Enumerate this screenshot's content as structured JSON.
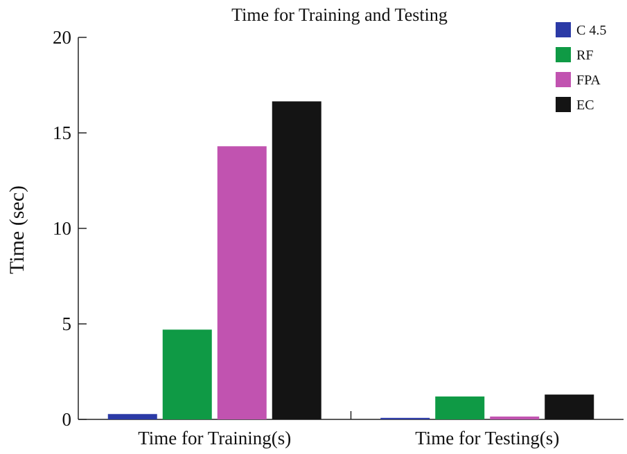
{
  "chart_data": {
    "type": "bar",
    "title": "Time for Training and Testing",
    "xlabel": "",
    "ylabel": "Time (sec)",
    "ylim": [
      0,
      20
    ],
    "yticks": [
      0,
      5,
      10,
      15,
      20
    ],
    "grid": false,
    "legend_position": "top-right",
    "categories": [
      "Time for Training(s)",
      "Time for Testing(s)"
    ],
    "series": [
      {
        "name": "C 4.5",
        "color": "#2b3aa6",
        "values": [
          0.28,
          0.08
        ]
      },
      {
        "name": "RF",
        "color": "#0f9a45",
        "values": [
          4.7,
          1.2
        ]
      },
      {
        "name": "FPA",
        "color": "#c153b0",
        "values": [
          14.3,
          0.15
        ]
      },
      {
        "name": "EC",
        "color": "#141414",
        "values": [
          16.65,
          1.3
        ]
      }
    ]
  }
}
